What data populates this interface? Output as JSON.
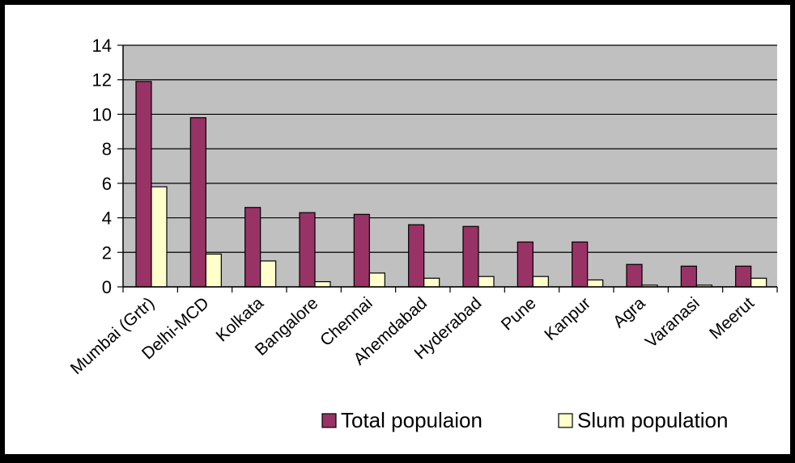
{
  "colors": {
    "frame": "#000000",
    "canvas": "#ffffff",
    "plot_area": "#c0c0c0",
    "total_bar": "#993366",
    "slum_bar": "#ffffcc",
    "bar_outline": "#000000"
  },
  "chart_data": {
    "type": "bar",
    "title": "",
    "xlabel": "",
    "ylabel": "",
    "ylim": [
      0,
      14
    ],
    "yticks": [
      0,
      2,
      4,
      6,
      8,
      10,
      12,
      14
    ],
    "grid": true,
    "legend_position": "bottom-right",
    "categories": [
      "Mumbai (Grtr)",
      "Delhi-MCD",
      "Kolkata",
      "Bangalore",
      "Chennai",
      "Ahemdabad",
      "Hyderabad",
      "Pune",
      "Kanpur",
      "Agra",
      "Varanasi",
      "Meerut"
    ],
    "series": [
      {
        "name": "Total populaion",
        "values": [
          11.9,
          9.8,
          4.6,
          4.3,
          4.2,
          3.6,
          3.5,
          2.6,
          2.6,
          1.3,
          1.2,
          1.2
        ]
      },
      {
        "name": "Slum population",
        "values": [
          5.8,
          1.9,
          1.5,
          0.3,
          0.8,
          0.5,
          0.6,
          0.6,
          0.4,
          0.1,
          0.1,
          0.5
        ]
      }
    ]
  }
}
